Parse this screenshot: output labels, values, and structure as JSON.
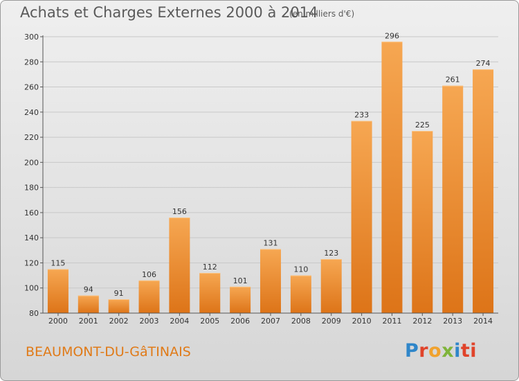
{
  "header": {
    "title": "Achats et Charges Externes 2000 à 2014",
    "unit": "(en milliers d'€)"
  },
  "footer": {
    "commune": "BEAUMONT-DU-GâTINAIS",
    "logo": "Proxiti",
    "logo_letters": [
      "P",
      "r",
      "o",
      "x",
      "i",
      "ti"
    ]
  },
  "colors": {
    "bar_light": "#f6a752",
    "bar_dark": "#dd7418",
    "commune_text": "#e07a17",
    "axis": "#555555",
    "grid": "#c8c8c8"
  },
  "chart_data": {
    "type": "bar",
    "title": "Achats et Charges Externes 2000 à 2014",
    "subtitle": "(en milliers d'€)",
    "xlabel": "",
    "ylabel": "",
    "categories": [
      "2000",
      "2001",
      "2002",
      "2003",
      "2004",
      "2005",
      "2006",
      "2007",
      "2008",
      "2009",
      "2010",
      "2011",
      "2012",
      "2013",
      "2014"
    ],
    "values": [
      115,
      94,
      91,
      106,
      156,
      112,
      101,
      131,
      110,
      123,
      233,
      296,
      225,
      261,
      274
    ],
    "ylim": [
      80,
      300
    ],
    "yticks": [
      80,
      100,
      120,
      140,
      160,
      180,
      200,
      220,
      240,
      260,
      280,
      300
    ],
    "grid": true,
    "data_labels": true
  }
}
